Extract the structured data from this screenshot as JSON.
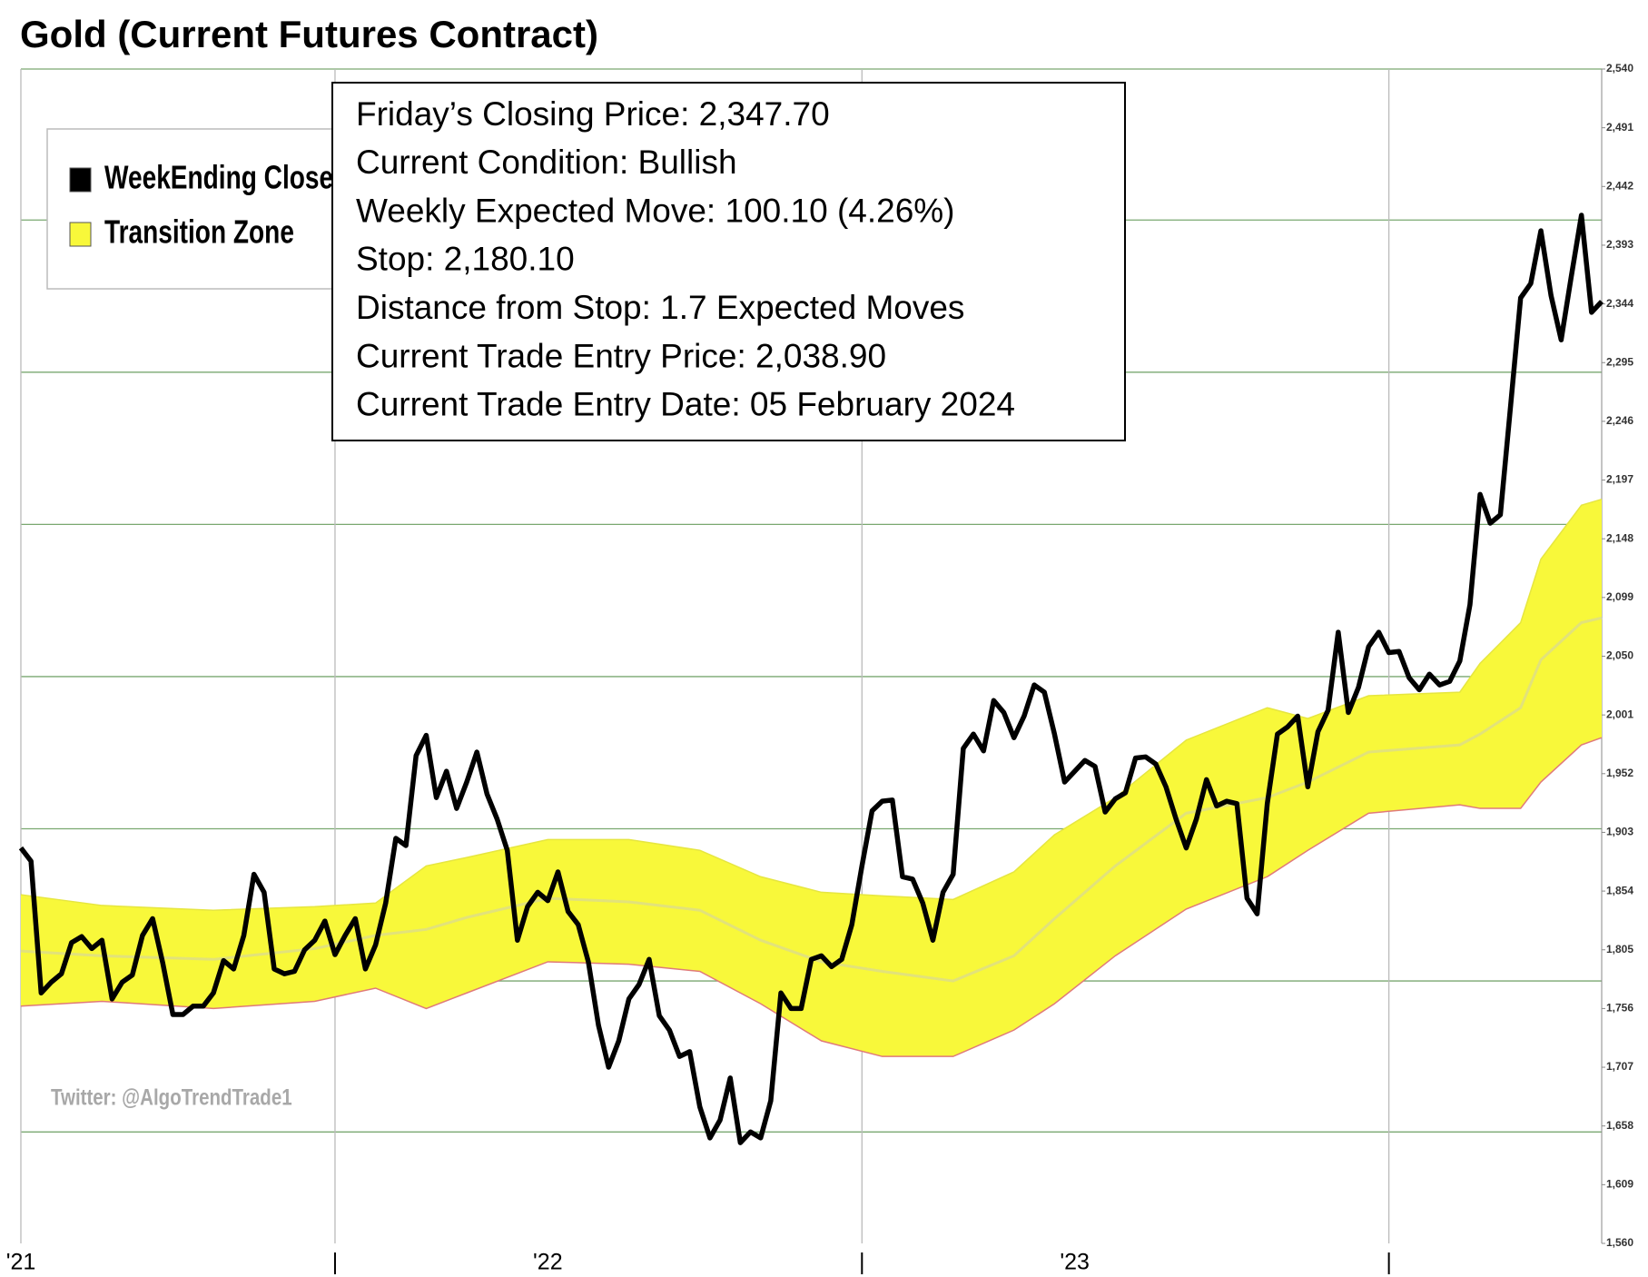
{
  "chart_data": {
    "type": "line",
    "title": "Gold (Current Futures Contract)",
    "annotations": [
      "Friday’s Closing Price: 2,347.70",
      "Current Condition: Bullish",
      "Weekly Expected Move: 100.10 (4.26%)",
      "Stop: 2,180.10",
      "Distance from Stop: 1.7 Expected Moves",
      "Current Trade Entry Price: 2,038.90",
      "Current Trade Entry Date: 05 February 2024"
    ],
    "watermark": "Twitter: @AlgoTrendTrade1",
    "categories": [
      "'21",
      null,
      null,
      null,
      null,
      null,
      null,
      null,
      null,
      null,
      null,
      null,
      null,
      null,
      null,
      null,
      null,
      null,
      null,
      null,
      null,
      null,
      null,
      null,
      null,
      null,
      null,
      null,
      null,
      null,
      null,
      null,
      null,
      null,
      null,
      null,
      null,
      null,
      null,
      null,
      null,
      null,
      null,
      null,
      null,
      null,
      null,
      null,
      null,
      null,
      null,
      null,
      "'22",
      null,
      null,
      null,
      null,
      null,
      null,
      null,
      null,
      null,
      null,
      null,
      null,
      null,
      null,
      null,
      null,
      null,
      null,
      null,
      null,
      null,
      null,
      null,
      null,
      null,
      null,
      null,
      null,
      null,
      null,
      null,
      null,
      null,
      null,
      null,
      null,
      null,
      null,
      null,
      null,
      null,
      null,
      null,
      null,
      null,
      null,
      null,
      null,
      null,
      null,
      null,
      "'23",
      null,
      null,
      null,
      null,
      null,
      null,
      null,
      null,
      null,
      null,
      null,
      null,
      null,
      null,
      null,
      null,
      null,
      null,
      null,
      null,
      null,
      null,
      null,
      null,
      null,
      null,
      null,
      null,
      null,
      null,
      null,
      null,
      null,
      null,
      null,
      null,
      null,
      null,
      null,
      null,
      null,
      null,
      null,
      null,
      null,
      null,
      null,
      null,
      null,
      null,
      null,
      null
    ],
    "series": [
      {
        "name": "WeekEnding Close",
        "color": "#000000",
        "values": [
          1890,
          1879,
          1769,
          1778,
          1785,
          1811,
          1816,
          1806,
          1813,
          1764,
          1778,
          1784,
          1817,
          1831,
          1794,
          1751,
          1751,
          1758,
          1758,
          1769,
          1796,
          1789,
          1817,
          1868,
          1853,
          1789,
          1785,
          1787,
          1805,
          1813,
          1829,
          1801,
          1817,
          1831,
          1789,
          1809,
          1844,
          1898,
          1892,
          1967,
          1984,
          1932,
          1954,
          1923,
          1945,
          1970,
          1935,
          1914,
          1888,
          1813,
          1841,
          1853,
          1846,
          1870,
          1837,
          1826,
          1795,
          1742,
          1707,
          1729,
          1764,
          1776,
          1797,
          1750,
          1738,
          1716,
          1720,
          1674,
          1648,
          1663,
          1698,
          1644,
          1653,
          1648,
          1679,
          1769,
          1756,
          1756,
          1797,
          1800,
          1791,
          1797,
          1826,
          1875,
          1921,
          1929,
          1930,
          1866,
          1864,
          1844,
          1813,
          1853,
          1868,
          1973,
          1985,
          1971,
          2013,
          2003,
          1982,
          2000,
          2026,
          2020,
          1985,
          1945,
          1954,
          1963,
          1958,
          1920,
          1931,
          1936,
          1965,
          1966,
          1960,
          1941,
          1914,
          1890,
          1914,
          1947,
          1925,
          1929,
          1927,
          1848,
          1835,
          1927,
          1985,
          1991,
          2000,
          1941,
          1987,
          2005,
          2070,
          2003,
          2024,
          2058,
          2070,
          2053,
          2054,
          2032,
          2022,
          2035,
          2026,
          2029,
          2046,
          2093,
          2185,
          2161,
          2168,
          2258,
          2349,
          2361,
          2405,
          2351,
          2314,
          2367,
          2418,
          2337,
          2346
        ]
      },
      {
        "name": "Transition Zone",
        "color": "#f8f83a",
        "line_color": "#e07a7a",
        "x": [
          0,
          8,
          19,
          29,
          35,
          40,
          44,
          52,
          60,
          67,
          73,
          79,
          85,
          92,
          98,
          102,
          108,
          115,
          123,
          127,
          133,
          142,
          144,
          148,
          150,
          154,
          156
        ],
        "upper": [
          1851,
          1842,
          1838,
          1841,
          1844,
          1875,
          1882,
          1897,
          1897,
          1888,
          1866,
          1853,
          1850,
          1847,
          1870,
          1901,
          1932,
          1980,
          2007,
          1998,
          2017,
          2020,
          2044,
          2078,
          2131,
          2176,
          2181
        ],
        "mid": [
          1804,
          1800,
          1797,
          1806,
          1817,
          1822,
          1832,
          1848,
          1845,
          1838,
          1813,
          1795,
          1787,
          1779,
          1800,
          1831,
          1875,
          1919,
          1932,
          1945,
          1970,
          1976,
          1985,
          2007,
          2047,
          2078,
          2082
        ],
        "lower": [
          1758,
          1762,
          1756,
          1762,
          1773,
          1756,
          1769,
          1795,
          1793,
          1787,
          1760,
          1729,
          1716,
          1716,
          1738,
          1760,
          1800,
          1839,
          1866,
          1888,
          1919,
          1926,
          1923,
          1923,
          1945,
          1976,
          1982
        ]
      }
    ],
    "ylim": [
      1560,
      2540
    ],
    "yticks": [
      {
        "value": 1560,
        "label": "1,560"
      },
      {
        "value": 1609,
        "label": "1,609"
      },
      {
        "value": 1658,
        "label": "1,658"
      },
      {
        "value": 1707,
        "label": "1,707"
      },
      {
        "value": 1756,
        "label": "1,756"
      },
      {
        "value": 1805,
        "label": "1,805"
      },
      {
        "value": 1854,
        "label": "1,854"
      },
      {
        "value": 1903,
        "label": "1,903"
      },
      {
        "value": 1952,
        "label": "1,952"
      },
      {
        "value": 2001,
        "label": "2,001"
      },
      {
        "value": 2050,
        "label": "2,050"
      },
      {
        "value": 2099,
        "label": "2,099"
      },
      {
        "value": 2148,
        "label": "2,148"
      },
      {
        "value": 2197,
        "label": "2,197"
      },
      {
        "value": 2246,
        "label": "2,246"
      },
      {
        "value": 2295,
        "label": "2,295"
      },
      {
        "value": 2344,
        "label": "2,344"
      },
      {
        "value": 2393,
        "label": "2,393"
      },
      {
        "value": 2442,
        "label": "2,442"
      },
      {
        "value": 2491,
        "label": "2,491"
      },
      {
        "value": 2540,
        "label": "2,540"
      }
    ],
    "ygrid": [
      2540,
      2414,
      2287,
      2160,
      2033,
      1906,
      1779,
      1653
    ],
    "grid_color": "#7aa870"
  }
}
